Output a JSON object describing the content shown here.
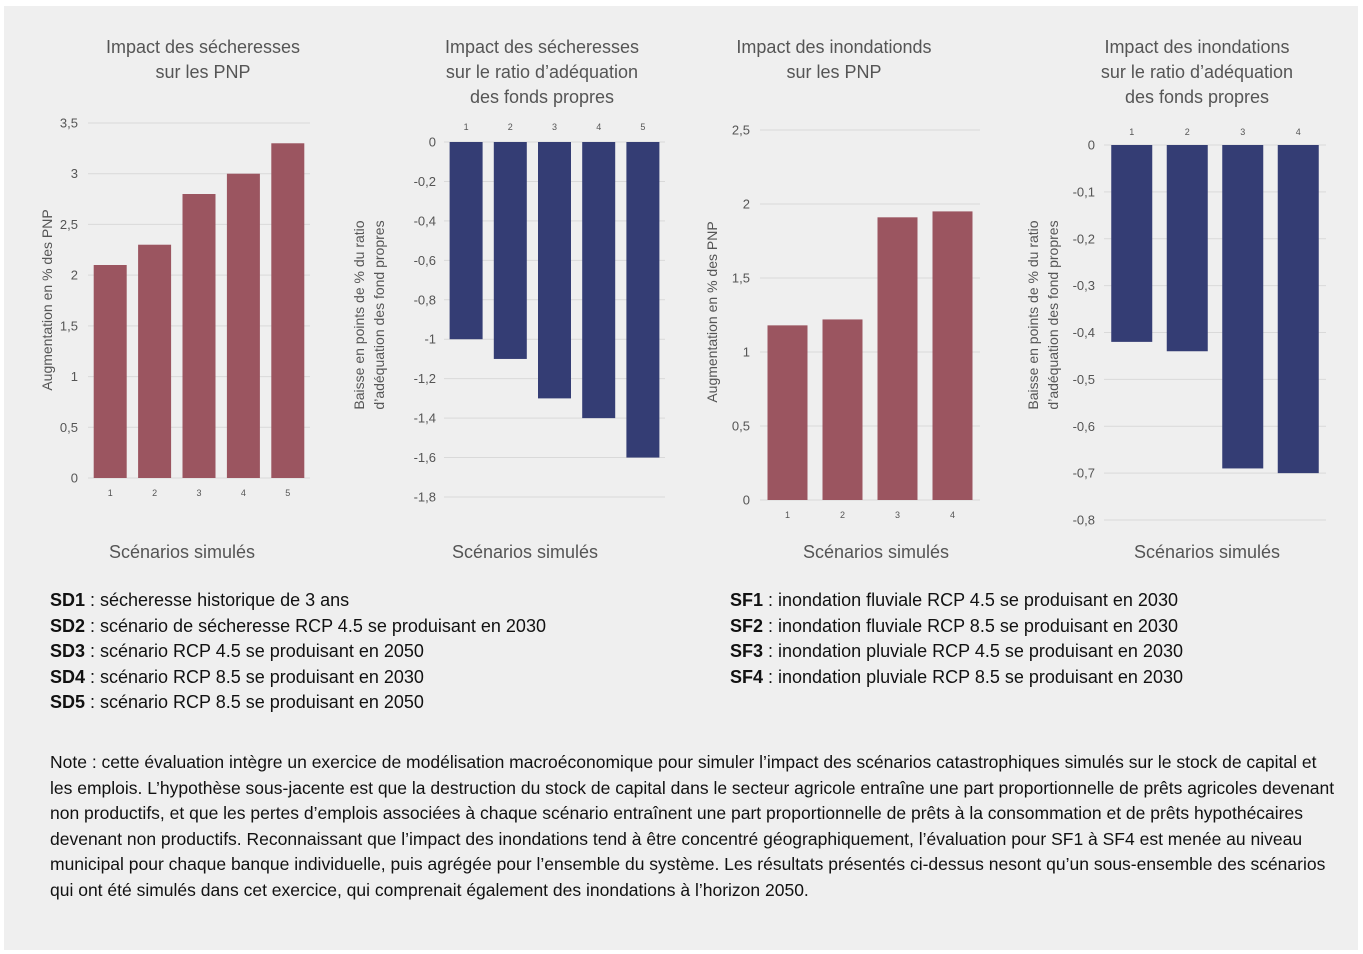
{
  "colors": {
    "red": "#9b5560",
    "blue": "#343d74",
    "grid": "#d9d9d9",
    "text": "#555555"
  },
  "charts": [
    {
      "title_lines": [
        "Impact des sécheresses",
        "sur les PNP"
      ],
      "ylabel_lines": [
        "Augmentation en % des PNP"
      ],
      "xlabel": "Scénarios simulés",
      "yticks": [
        "0",
        "0,5",
        "1",
        "1,5",
        "2",
        "2,5",
        "3",
        "3,5"
      ],
      "categories": [
        "1",
        "2",
        "3",
        "4",
        "5"
      ]
    },
    {
      "title_lines": [
        "Impact des sécheresses",
        "sur le ratio d’adéquation",
        "des fonds propres"
      ],
      "ylabel_lines": [
        "Baisse en points de % du ratio",
        "d’adéquation des fond propres"
      ],
      "xlabel": "Scénarios simulés",
      "yticks": [
        "0",
        "-0,2",
        "-0,4",
        "-0,6",
        "-0,8",
        "-1",
        "-1,2",
        "-1,4",
        "-1,6",
        "-1,8"
      ],
      "categories": [
        "1",
        "2",
        "3",
        "4",
        "5"
      ]
    },
    {
      "title_lines": [
        "Impact des inondationds",
        "sur les PNP"
      ],
      "ylabel_lines": [
        "Augmentation en % des PNP"
      ],
      "xlabel": "Scénarios simulés",
      "yticks": [
        "0",
        "0,5",
        "1",
        "1,5",
        "2",
        "2,5"
      ],
      "categories": [
        "1",
        "2",
        "3",
        "4"
      ]
    },
    {
      "title_lines": [
        "Impact des inondations",
        "sur le ratio d’adéquation",
        "des fonds propres"
      ],
      "ylabel_lines": [
        "Baisse en points de % du ratio",
        "d’adéquation des fond propres"
      ],
      "xlabel": "Scénarios simulés",
      "yticks": [
        "0",
        "-0,1",
        "-0,2",
        "-0,3",
        "-0,4",
        "-0,5",
        "-0,6",
        "-0,7",
        "-0,8"
      ],
      "categories": [
        "1",
        "2",
        "3",
        "4"
      ]
    }
  ],
  "chart_data": [
    {
      "type": "bar",
      "title": "Impact des sécheresses sur les PNP",
      "xlabel": "Scénarios simulés",
      "ylabel": "Augmentation en % des PNP",
      "categories": [
        "1",
        "2",
        "3",
        "4",
        "5"
      ],
      "values": [
        2.1,
        2.3,
        2.8,
        3.0,
        3.3
      ],
      "ylim": [
        0,
        3.5
      ],
      "color": "#9b5560",
      "grid": true
    },
    {
      "type": "bar",
      "title": "Impact des sécheresses sur le ratio d’adéquation des fonds propres",
      "xlabel": "Scénarios simulés",
      "ylabel": "Baisse en points de % du ratio d’adéquation des fond propres",
      "categories": [
        "1",
        "2",
        "3",
        "4",
        "5"
      ],
      "values": [
        -1.0,
        -1.1,
        -1.3,
        -1.4,
        -1.6
      ],
      "ylim": [
        -1.8,
        0
      ],
      "color": "#343d74",
      "grid": true
    },
    {
      "type": "bar",
      "title": "Impact des inondationds sur les PNP",
      "xlabel": "Scénarios simulés",
      "ylabel": "Augmentation en % des PNP",
      "categories": [
        "1",
        "2",
        "3",
        "4"
      ],
      "values": [
        1.18,
        1.22,
        1.91,
        1.95
      ],
      "ylim": [
        0,
        2.5
      ],
      "color": "#9b5560",
      "grid": true
    },
    {
      "type": "bar",
      "title": "Impact des inondations sur le ratio d’adéquation des fonds propres",
      "xlabel": "Scénarios simulés",
      "ylabel": "Baisse en points de % du ratio d’adéquation des fond propres",
      "categories": [
        "1",
        "2",
        "3",
        "4"
      ],
      "values": [
        -0.42,
        -0.44,
        -0.69,
        -0.7
      ],
      "ylim": [
        -0.8,
        0
      ],
      "color": "#343d74",
      "grid": true
    }
  ],
  "legend_left": [
    {
      "code": "SD1",
      "text": " : sécheresse historique de 3 ans"
    },
    {
      "code": "SD2",
      "text": " : scénario de sécheresse RCP 4.5 se produisant en 2030"
    },
    {
      "code": "SD3",
      "text": " : scénario RCP 4.5 se produisant en 2050"
    },
    {
      "code": "SD4",
      "text": " : scénario RCP 8.5 se produisant en 2030"
    },
    {
      "code": "SD5",
      "text": " : scénario RCP 8.5 se produisant en 2050"
    }
  ],
  "legend_right": [
    {
      "code": "SF1",
      "text": " : inondation fluviale RCP 4.5 se produisant en 2030"
    },
    {
      "code": "SF2",
      "text": " : inondation fluviale RCP 8.5 se produisant en 2030"
    },
    {
      "code": "SF3",
      "text": " : inondation pluviale RCP 4.5 se produisant en 2030"
    },
    {
      "code": "SF4",
      "text": " : inondation pluviale RCP 8.5 se produisant en 2030"
    }
  ],
  "note": "Note : cette évaluation intègre un exercice de modélisation macroéconomique pour simuler l’impact des scénarios catastrophiques simulés sur le stock de capital et les emplois. L’hypothèse sous-jacente est que la destruction du stock de capital dans le secteur agricole entraîne une part proportionnelle de prêts agricoles devenant non productifs, et que les pertes d’emplois associées à chaque scénario entraînent une part proportionnelle de prêts à la consommation et de prêts hypothécaires devenant non productifs. Reconnaissant que l’impact des inondations tend à être concentré géographiquement, l’évaluation pour SF1 à SF4 est menée au niveau municipal pour chaque banque individuelle, puis agrégée pour l’ensemble du système. Les résultats présentés ci-dessus nesont qu’un sous-ensemble des scénarios qui ont été simulés dans cet exercice, qui comprenait également des inondations à l’horizon 2050."
}
